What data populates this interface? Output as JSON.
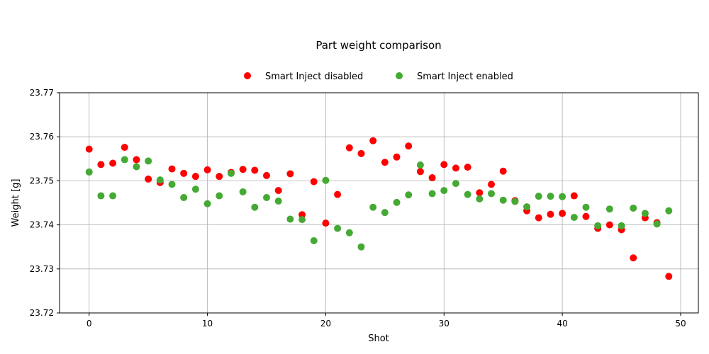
{
  "chart_data": {
    "type": "scatter",
    "title": "Part weight comparison",
    "xlabel": "Shot",
    "ylabel": "Weight [g]",
    "xlim": [
      -2.5,
      51.5
    ],
    "ylim": [
      23.72,
      23.77
    ],
    "xticks": [
      0,
      10,
      20,
      30,
      40,
      50
    ],
    "yticks": [
      23.72,
      23.73,
      23.74,
      23.75,
      23.76,
      23.77
    ],
    "ytick_labels": [
      "23.72",
      "23.73",
      "23.74",
      "23.75",
      "23.76",
      "23.77"
    ],
    "grid": true,
    "legend_position": "top-center",
    "series": [
      {
        "name": "Smart Inject disabled",
        "color": "#ff0000",
        "x": [
          0,
          1,
          2,
          3,
          4,
          5,
          6,
          7,
          8,
          9,
          10,
          11,
          12,
          13,
          14,
          15,
          16,
          17,
          18,
          19,
          20,
          21,
          22,
          23,
          24,
          25,
          26,
          27,
          28,
          29,
          30,
          31,
          32,
          33,
          34,
          35,
          36,
          37,
          38,
          39,
          40,
          41,
          42,
          43,
          44,
          45,
          46,
          47,
          48,
          49
        ],
        "y": [
          23.7572,
          23.7537,
          23.754,
          23.7576,
          23.7548,
          23.7504,
          23.7496,
          23.7527,
          23.7517,
          23.751,
          23.7525,
          23.751,
          23.7519,
          23.7526,
          23.7524,
          23.7512,
          23.7478,
          23.7516,
          23.7423,
          23.7498,
          23.7404,
          23.7469,
          23.7575,
          23.7562,
          23.7591,
          23.7542,
          23.7554,
          23.7579,
          23.7521,
          23.7507,
          23.7537,
          23.7529,
          23.7531,
          23.7473,
          23.7492,
          23.7522,
          23.7455,
          23.7432,
          23.7416,
          23.7424,
          23.7426,
          23.7466,
          23.7419,
          23.7392,
          23.74,
          23.7389,
          23.7325,
          23.7416,
          23.7405,
          23.7283
        ]
      },
      {
        "name": "Smart Inject enabled",
        "color": "#44aa33",
        "x": [
          0,
          1,
          2,
          3,
          4,
          5,
          6,
          7,
          8,
          9,
          10,
          11,
          12,
          13,
          14,
          15,
          16,
          17,
          18,
          19,
          20,
          21,
          22,
          23,
          24,
          25,
          26,
          27,
          28,
          29,
          30,
          31,
          32,
          33,
          34,
          35,
          36,
          37,
          38,
          39,
          40,
          41,
          42,
          43,
          44,
          45,
          46,
          47,
          48,
          49
        ],
        "y": [
          23.752,
          23.7466,
          23.7466,
          23.7548,
          23.7532,
          23.7545,
          23.7502,
          23.7492,
          23.7462,
          23.7481,
          23.7448,
          23.7466,
          23.7517,
          23.7475,
          23.744,
          23.7462,
          23.7454,
          23.7413,
          23.7412,
          23.7364,
          23.7501,
          23.7392,
          23.7382,
          23.735,
          23.744,
          23.7428,
          23.7451,
          23.7468,
          23.7536,
          23.7471,
          23.7478,
          23.7494,
          23.7469,
          23.7459,
          23.7471,
          23.7456,
          23.7453,
          23.7441,
          23.7465,
          23.7465,
          23.7464,
          23.7417,
          23.744,
          23.7398,
          23.7436,
          23.7398,
          23.7438,
          23.7426,
          23.7402,
          23.7432
        ]
      }
    ]
  }
}
